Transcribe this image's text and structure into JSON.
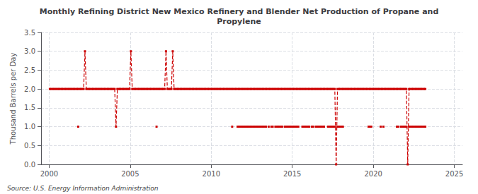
{
  "chart_data": {
    "type": "line",
    "title": "Monthly Refining District New Mexico Refinery and Blender Net Production of Propane and\nPropylene",
    "ylabel": "Thousand Barrels per Day",
    "annotations": [
      "Source: U.S. Energy Information Administration"
    ],
    "grid": true,
    "xlim": [
      1999.5,
      2025.5
    ],
    "xticks": [
      2000,
      2005,
      2010,
      2015,
      2020,
      2025
    ],
    "ylim": [
      0.0,
      3.5
    ],
    "yticks": [
      {
        "value": 0.0,
        "label": "0.0"
      },
      0.5,
      {
        "value": 1.0,
        "label": "1.0"
      },
      1.5,
      {
        "value": 2.0,
        "label": "2.0"
      },
      2.5,
      {
        "value": 3.0,
        "label": "3.0"
      },
      3.5
    ],
    "x": [
      2000.0416666666667,
      2000.125,
      2000.2083333333333,
      2000.2916666666667,
      2000.375,
      2000.4583333333333,
      2000.5416666666667,
      2000.625,
      2000.7083333333333,
      2000.7916666666667,
      2000.875,
      2000.9583333333333,
      2001.0416666666667,
      2001.125,
      2001.2083333333333,
      2001.2916666666667,
      2001.375,
      2001.4583333333333,
      2001.5416666666667,
      2001.625,
      2001.7083333333333,
      2001.7916666666667,
      2001.875,
      2001.9583333333333,
      2002.0416666666667,
      2002.125,
      2002.2083333333333,
      2002.2916666666667,
      2002.375,
      2002.4583333333333,
      2002.5416666666667,
      2002.625,
      2002.7083333333333,
      2002.7916666666667,
      2002.875,
      2002.9583333333333,
      2003.0416666666667,
      2003.125,
      2003.2083333333333,
      2003.2916666666667,
      2003.375,
      2003.4583333333333,
      2003.5416666666667,
      2003.625,
      2003.7083333333333,
      2003.7916666666667,
      2003.875,
      2003.9583333333333,
      2004.0416666666667,
      2004.125,
      2004.2083333333333,
      2004.2916666666667,
      2004.375,
      2004.4583333333333,
      2004.5416666666667,
      2004.625,
      2004.7083333333333,
      2004.7916666666667,
      2004.875,
      2004.9583333333333,
      2005.0416666666667,
      2005.125,
      2005.2083333333333,
      2005.2916666666667,
      2005.375,
      2005.4583333333333,
      2005.5416666666667,
      2005.625,
      2005.7083333333333,
      2005.7916666666667,
      2005.875,
      2005.9583333333333,
      2006.0416666666667,
      2006.125,
      2006.2083333333333,
      2006.2916666666667,
      2006.375,
      2006.4583333333333,
      2006.5416666666667,
      2006.625,
      2006.7083333333333,
      2006.7916666666667,
      2006.875,
      2006.9583333333333,
      2007.0416666666667,
      2007.125,
      2007.2083333333333,
      2007.2916666666667,
      2007.375,
      2007.4583333333333,
      2007.5416666666667,
      2007.625,
      2007.7083333333333,
      2007.7916666666667,
      2007.875,
      2007.9583333333333,
      2008.0416666666667,
      2008.125,
      2008.2083333333333,
      2008.2916666666667,
      2008.375,
      2008.4583333333333,
      2008.5416666666667,
      2008.625,
      2008.7083333333333,
      2008.7916666666667,
      2008.875,
      2008.9583333333333,
      2009.0416666666667,
      2009.125,
      2009.2083333333333,
      2009.2916666666667,
      2009.375,
      2009.4583333333333,
      2009.5416666666667,
      2009.625,
      2009.7083333333333,
      2009.7916666666667,
      2009.875,
      2009.9583333333333,
      2010.0416666666667,
      2010.125,
      2010.2083333333333,
      2010.2916666666667,
      2010.375,
      2010.4583333333333,
      2010.5416666666667,
      2010.625,
      2010.7083333333333,
      2010.7916666666667,
      2010.875,
      2010.9583333333333,
      2011.0416666666667,
      2011.125,
      2011.2083333333333,
      2011.2916666666667,
      2011.375,
      2011.4583333333333,
      2011.5416666666667,
      2011.625,
      2011.7083333333333,
      2011.7916666666667,
      2011.875,
      2011.9583333333333,
      2012.0416666666667,
      2012.125,
      2012.2083333333333,
      2012.2916666666667,
      2012.375,
      2012.4583333333333,
      2012.5416666666667,
      2012.625,
      2012.7083333333333,
      2012.7916666666667,
      2012.875,
      2012.9583333333333,
      2013.0416666666667,
      2013.125,
      2013.2083333333333,
      2013.2916666666667,
      2013.375,
      2013.4583333333333,
      2013.5416666666667,
      2013.625,
      2013.7083333333333,
      2013.7916666666667,
      2013.875,
      2013.9583333333333,
      2014.0416666666667,
      2014.125,
      2014.2083333333333,
      2014.2916666666667,
      2014.375,
      2014.4583333333333,
      2014.5416666666667,
      2014.625,
      2014.7083333333333,
      2014.7916666666667,
      2014.875,
      2014.9583333333333,
      2015.0416666666667,
      2015.125,
      2015.2083333333333,
      2015.2916666666667,
      2015.375,
      2015.4583333333333,
      2015.5416666666667,
      2015.625,
      2015.7083333333333,
      2015.7916666666667,
      2015.875,
      2015.9583333333333,
      2016.0416666666667,
      2016.125,
      2016.2083333333333,
      2016.2916666666667,
      2016.375,
      2016.4583333333333,
      2016.5416666666667,
      2016.625,
      2016.7083333333333,
      2016.7916666666667,
      2016.875,
      2016.9583333333333,
      2017.0416666666667,
      2017.125,
      2017.2083333333333,
      2017.2916666666667,
      2017.375,
      2017.4583333333333,
      2017.5416666666667,
      2017.625,
      2017.7083333333333,
      2017.7916666666667,
      2017.875,
      2017.9583333333333,
      2018.0416666666667,
      2018.125,
      2018.2083333333333,
      2018.2916666666667,
      2018.375,
      2018.4583333333333,
      2018.5416666666667,
      2018.625,
      2018.7083333333333,
      2018.7916666666667,
      2018.875,
      2018.9583333333333,
      2019.0416666666667,
      2019.125,
      2019.2083333333333,
      2019.2916666666667,
      2019.375,
      2019.4583333333333,
      2019.5416666666667,
      2019.625,
      2019.7083333333333,
      2019.7916666666667,
      2019.875,
      2019.9583333333333,
      2020.0416666666667,
      2020.125,
      2020.2083333333333,
      2020.2916666666667,
      2020.375,
      2020.4583333333333,
      2020.5416666666667,
      2020.625,
      2020.7083333333333,
      2020.7916666666667,
      2020.875,
      2020.9583333333333,
      2021.0416666666667,
      2021.125,
      2021.2083333333333,
      2021.2916666666667,
      2021.375,
      2021.4583333333333,
      2021.5416666666667,
      2021.625,
      2021.7083333333333,
      2021.7916666666667,
      2021.875,
      2021.9583333333333,
      2022.0416666666667,
      2022.125,
      2022.2083333333333,
      2022.2916666666667,
      2022.375,
      2022.4583333333333,
      2022.5416666666667,
      2022.625,
      2022.7083333333333,
      2022.7916666666667,
      2022.875,
      2022.9583333333333,
      2023.0416666666667,
      2023.125,
      2023.2083333333333
    ],
    "series": [
      {
        "color": "#cc0000",
        "marker": "square",
        "line_style": "dashed",
        "values": [
          2,
          2,
          2,
          2,
          2,
          2,
          2,
          2,
          2,
          2,
          2,
          2,
          2,
          2,
          2,
          2,
          2,
          2,
          2,
          2,
          2,
          2,
          2,
          2,
          2,
          2,
          3,
          2,
          2,
          2,
          2,
          2,
          2,
          2,
          2,
          2,
          2,
          2,
          2,
          2,
          2,
          2,
          2,
          2,
          2,
          2,
          2,
          2,
          2,
          1,
          2,
          2,
          2,
          2,
          2,
          2,
          2,
          2,
          2,
          2,
          3,
          2,
          2,
          2,
          2,
          2,
          2,
          2,
          2,
          2,
          2,
          2,
          2,
          2,
          2,
          2,
          2,
          2,
          2,
          2,
          2,
          2,
          2,
          2,
          2,
          2,
          3,
          2,
          2,
          2,
          2,
          3,
          2,
          2,
          2,
          2,
          2,
          2,
          2,
          2,
          2,
          2,
          2,
          2,
          2,
          2,
          2,
          2,
          2,
          2,
          2,
          2,
          2,
          2,
          2,
          2,
          2,
          2,
          2,
          2,
          2,
          2,
          2,
          2,
          2,
          2,
          2,
          2,
          2,
          2,
          2,
          2,
          2,
          2,
          2,
          2,
          2,
          2,
          2,
          2,
          2,
          2,
          2,
          2,
          2,
          2,
          2,
          2,
          2,
          2,
          2,
          2,
          2,
          2,
          2,
          2,
          2,
          2,
          2,
          2,
          2,
          2,
          2,
          2,
          2,
          2,
          2,
          2,
          2,
          2,
          2,
          2,
          2,
          2,
          2,
          2,
          2,
          2,
          2,
          2,
          2,
          2,
          2,
          2,
          2,
          2,
          2,
          2,
          2,
          2,
          2,
          2,
          2,
          2,
          2,
          2,
          2,
          2,
          2,
          2,
          2,
          2,
          2,
          2,
          2,
          2,
          2,
          2,
          2,
          2,
          2,
          2,
          0,
          2,
          2,
          2,
          2,
          2,
          2,
          2,
          2,
          2,
          2,
          2,
          2,
          2,
          2,
          2,
          2,
          2,
          2,
          2,
          2,
          2,
          2,
          2,
          2,
          2,
          2,
          2,
          2,
          2,
          2,
          2,
          2,
          2,
          2,
          2,
          2,
          2,
          2,
          2,
          2,
          2,
          2,
          2,
          2,
          2,
          2,
          2,
          2,
          2,
          2,
          2,
          2,
          0,
          2,
          2,
          2,
          2,
          2,
          2,
          2,
          2,
          2,
          2,
          2,
          2,
          2
        ]
      },
      {
        "color": "#cc0000",
        "marker": "square",
        "line_style": "dashed",
        "values": [
          null,
          null,
          null,
          null,
          null,
          null,
          null,
          null,
          null,
          null,
          null,
          null,
          null,
          null,
          null,
          null,
          null,
          null,
          null,
          null,
          null,
          1,
          null,
          null,
          null,
          null,
          null,
          null,
          null,
          null,
          null,
          null,
          null,
          null,
          null,
          null,
          null,
          null,
          null,
          null,
          null,
          null,
          null,
          null,
          null,
          null,
          null,
          null,
          null,
          null,
          null,
          null,
          null,
          null,
          null,
          null,
          null,
          null,
          null,
          null,
          null,
          null,
          null,
          null,
          null,
          null,
          null,
          null,
          null,
          null,
          null,
          null,
          null,
          null,
          null,
          null,
          null,
          null,
          null,
          1,
          null,
          null,
          null,
          null,
          null,
          null,
          null,
          null,
          null,
          null,
          null,
          null,
          null,
          null,
          null,
          null,
          null,
          null,
          null,
          null,
          null,
          null,
          null,
          null,
          null,
          null,
          null,
          null,
          null,
          null,
          null,
          null,
          null,
          null,
          null,
          null,
          null,
          null,
          null,
          null,
          null,
          null,
          null,
          null,
          null,
          null,
          null,
          null,
          null,
          null,
          null,
          null,
          null,
          null,
          null,
          1,
          null,
          null,
          null,
          1,
          1,
          1,
          1,
          1,
          1,
          1,
          1,
          1,
          1,
          1,
          1,
          1,
          1,
          1,
          1,
          1,
          1,
          1,
          1,
          1,
          1,
          null,
          1,
          null,
          1,
          1,
          null,
          1,
          1,
          1,
          1,
          1,
          1,
          null,
          1,
          1,
          1,
          1,
          1,
          1,
          1,
          1,
          1,
          1,
          1,
          null,
          null,
          1,
          1,
          1,
          1,
          1,
          1,
          null,
          1,
          1,
          null,
          1,
          1,
          1,
          1,
          1,
          1,
          1,
          null,
          null,
          1,
          1,
          1,
          1,
          1,
          1,
          null,
          1,
          1,
          1,
          1,
          1,
          null,
          null,
          null,
          null,
          null,
          null,
          null,
          null,
          null,
          null,
          null,
          null,
          null,
          null,
          null,
          null,
          null,
          null,
          1,
          1,
          1,
          null,
          null,
          null,
          null,
          null,
          null,
          1,
          null,
          1,
          null,
          null,
          null,
          null,
          null,
          null,
          null,
          null,
          null,
          1,
          1,
          null,
          1,
          1,
          1,
          1,
          1,
          null,
          1,
          1,
          1,
          1,
          1,
          1,
          1,
          1,
          1,
          1,
          1,
          1,
          1
        ]
      }
    ]
  }
}
